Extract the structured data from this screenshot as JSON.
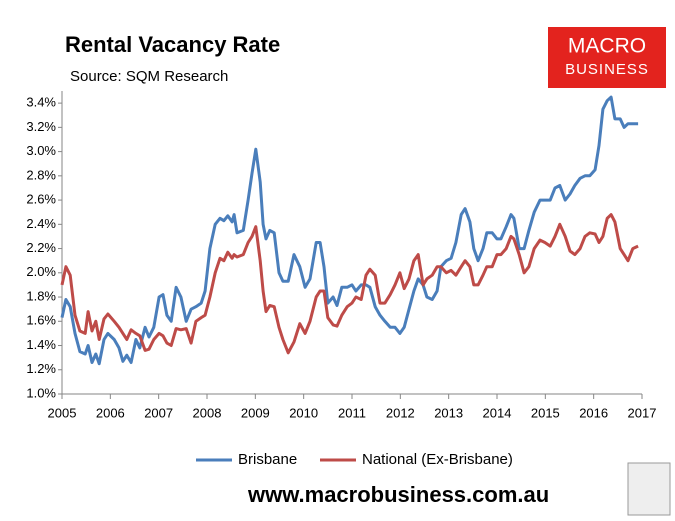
{
  "chart_data": {
    "type": "line",
    "title": "Rental Vacancy Rate",
    "subtitle": "Source: SQM Research",
    "x": [
      2005.0,
      2005.08,
      2005.17,
      2005.27,
      2005.37,
      2005.48,
      2005.54,
      2005.62,
      2005.7,
      2005.77,
      2005.87,
      2005.95,
      2006.08,
      2006.18,
      2006.26,
      2006.34,
      2006.43,
      2006.53,
      2006.61,
      2006.72,
      2006.8,
      2006.9,
      2007.01,
      2007.09,
      2007.17,
      2007.26,
      2007.36,
      2007.46,
      2007.57,
      2007.67,
      2007.77,
      2007.88,
      2007.96,
      2008.06,
      2008.17,
      2008.27,
      2008.35,
      2008.43,
      2008.52,
      2008.56,
      2008.62,
      2008.75,
      2008.85,
      2008.93,
      2009.01,
      2009.1,
      2009.16,
      2009.22,
      2009.3,
      2009.39,
      2009.49,
      2009.57,
      2009.68,
      2009.8,
      2009.92,
      2010.03,
      2010.13,
      2010.26,
      2010.34,
      2010.42,
      2010.5,
      2010.61,
      2010.69,
      2010.79,
      2010.9,
      2011.0,
      2011.08,
      2011.19,
      2011.29,
      2011.37,
      2011.48,
      2011.58,
      2011.68,
      2011.79,
      2011.89,
      2011.99,
      2012.08,
      2012.18,
      2012.28,
      2012.37,
      2012.47,
      2012.55,
      2012.66,
      2012.76,
      2012.84,
      2012.95,
      2013.05,
      2013.15,
      2013.26,
      2013.34,
      2013.44,
      2013.52,
      2013.61,
      2013.71,
      2013.79,
      2013.9,
      2014.0,
      2014.08,
      2014.19,
      2014.29,
      2014.35,
      2014.46,
      2014.56,
      2014.66,
      2014.77,
      2014.89,
      2014.99,
      2015.1,
      2015.2,
      2015.3,
      2015.41,
      2015.51,
      2015.61,
      2015.72,
      2015.82,
      2015.92,
      2016.03,
      2016.11,
      2016.19,
      2016.28,
      2016.36,
      2016.44,
      2016.55,
      2016.63,
      2016.71,
      2016.81,
      2016.92
    ],
    "series": [
      {
        "name": "Brisbane",
        "color": "#4a7ebb",
        "values": [
          1.63,
          1.78,
          1.72,
          1.5,
          1.35,
          1.33,
          1.4,
          1.26,
          1.33,
          1.25,
          1.45,
          1.5,
          1.45,
          1.38,
          1.27,
          1.32,
          1.26,
          1.45,
          1.38,
          1.55,
          1.47,
          1.55,
          1.8,
          1.82,
          1.65,
          1.6,
          1.88,
          1.8,
          1.6,
          1.7,
          1.72,
          1.75,
          1.85,
          2.2,
          2.4,
          2.45,
          2.43,
          2.47,
          2.42,
          2.48,
          2.33,
          2.35,
          2.6,
          2.82,
          3.02,
          2.75,
          2.4,
          2.28,
          2.35,
          2.33,
          2.0,
          1.93,
          1.93,
          2.15,
          2.05,
          1.88,
          1.95,
          2.25,
          2.25,
          2.05,
          1.75,
          1.8,
          1.73,
          1.88,
          1.88,
          1.9,
          1.85,
          1.9,
          1.9,
          1.88,
          1.72,
          1.65,
          1.6,
          1.55,
          1.55,
          1.5,
          1.55,
          1.7,
          1.85,
          1.95,
          1.9,
          1.8,
          1.78,
          1.85,
          2.05,
          2.1,
          2.12,
          2.25,
          2.48,
          2.53,
          2.42,
          2.2,
          2.1,
          2.2,
          2.33,
          2.33,
          2.28,
          2.28,
          2.38,
          2.48,
          2.45,
          2.2,
          2.2,
          2.35,
          2.5,
          2.6,
          2.6,
          2.6,
          2.7,
          2.72,
          2.6,
          2.65,
          2.72,
          2.78,
          2.8,
          2.8,
          2.85,
          3.05,
          3.35,
          3.42,
          3.45,
          3.27,
          3.27,
          3.2,
          3.23,
          3.23,
          3.23
        ]
      },
      {
        "name": "National (Ex-Brisbane)",
        "color": "#be4b48",
        "values": [
          1.9,
          2.05,
          1.98,
          1.65,
          1.52,
          1.5,
          1.68,
          1.52,
          1.6,
          1.45,
          1.62,
          1.66,
          1.6,
          1.55,
          1.5,
          1.45,
          1.53,
          1.5,
          1.48,
          1.36,
          1.37,
          1.45,
          1.5,
          1.48,
          1.42,
          1.4,
          1.54,
          1.53,
          1.54,
          1.42,
          1.6,
          1.63,
          1.65,
          1.8,
          2.0,
          2.12,
          2.1,
          2.17,
          2.12,
          2.15,
          2.13,
          2.15,
          2.25,
          2.3,
          2.38,
          2.1,
          1.85,
          1.68,
          1.73,
          1.72,
          1.55,
          1.45,
          1.34,
          1.43,
          1.58,
          1.5,
          1.6,
          1.8,
          1.85,
          1.85,
          1.63,
          1.57,
          1.56,
          1.65,
          1.72,
          1.75,
          1.8,
          1.78,
          1.98,
          2.03,
          1.98,
          1.75,
          1.75,
          1.82,
          1.9,
          2.0,
          1.87,
          1.95,
          2.1,
          2.15,
          1.9,
          1.95,
          1.98,
          2.05,
          2.05,
          2.0,
          2.02,
          1.98,
          2.05,
          2.1,
          2.05,
          1.9,
          1.9,
          1.98,
          2.05,
          2.05,
          2.15,
          2.15,
          2.2,
          2.3,
          2.28,
          2.15,
          2.0,
          2.05,
          2.2,
          2.27,
          2.25,
          2.22,
          2.3,
          2.4,
          2.3,
          2.18,
          2.15,
          2.2,
          2.3,
          2.33,
          2.32,
          2.25,
          2.3,
          2.45,
          2.48,
          2.42,
          2.2,
          2.15,
          2.1,
          2.2,
          2.22
        ]
      }
    ],
    "xlim": [
      2005,
      2017
    ],
    "xticks": [
      2005,
      2006,
      2007,
      2008,
      2009,
      2010,
      2011,
      2012,
      2013,
      2014,
      2015,
      2016,
      2017
    ],
    "ylim": [
      1.0,
      3.5
    ],
    "yticks": [
      {
        "value": 1.0,
        "label": "1.0%"
      },
      {
        "value": 1.2,
        "label": "1.2%"
      },
      {
        "value": 1.4,
        "label": "1.4%"
      },
      {
        "value": 1.6,
        "label": "1.6%"
      },
      {
        "value": 1.8,
        "label": "1.8%"
      },
      {
        "value": 2.0,
        "label": "2.0%"
      },
      {
        "value": 2.2,
        "label": "2.2%"
      },
      {
        "value": 2.4,
        "label": "2.4%"
      },
      {
        "value": 2.6,
        "label": "2.6%"
      },
      {
        "value": 2.8,
        "label": "2.8%"
      },
      {
        "value": 3.0,
        "label": "3.0%"
      },
      {
        "value": 3.2,
        "label": "3.2%"
      },
      {
        "value": 3.4,
        "label": "3.4%"
      }
    ],
    "grid": false,
    "legend": "bottom"
  },
  "logo": [
    "MACRO",
    "BUSINESS"
  ],
  "footer": "www.macrobusiness.com.au"
}
